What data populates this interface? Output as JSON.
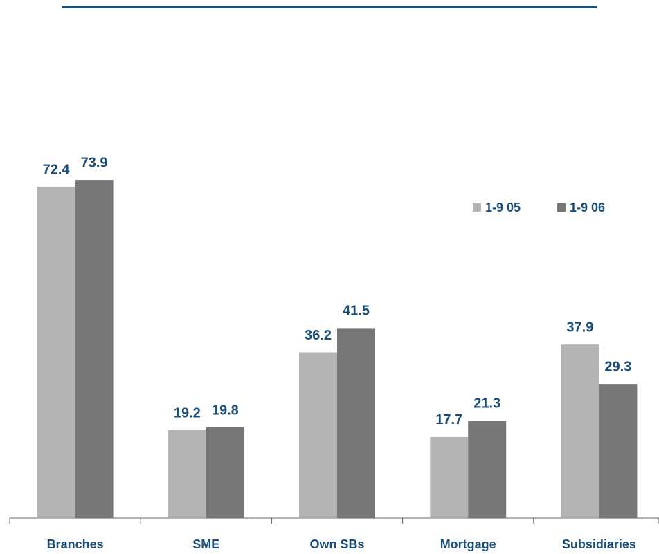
{
  "chart_data": {
    "type": "bar",
    "categories": [
      "Branches",
      "SME",
      "Own SBs",
      "Mortgage",
      "Subsidiaries"
    ],
    "series": [
      {
        "name": "1-9 05",
        "color": "#b3b3b3",
        "values": [
          72.4,
          19.2,
          36.2,
          17.7,
          37.9
        ]
      },
      {
        "name": "1-9 06",
        "color": "#777777",
        "values": [
          73.9,
          19.8,
          41.5,
          21.3,
          29.3
        ]
      }
    ],
    "legend": "upper right"
  }
}
